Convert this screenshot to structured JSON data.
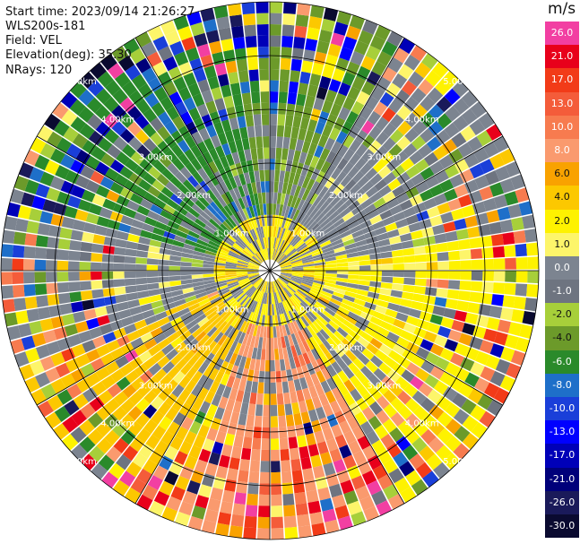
{
  "header": {
    "start_time": "Start time: 2023/09/14 21:26:27",
    "instrument": "WLS200s-181",
    "field": "Field: VEL",
    "elevation": "Elevation(deg): 35.30",
    "nrays": "NRays: 120"
  },
  "colorbar": {
    "unit": "m/s",
    "levels": [
      {
        "label": "26.0",
        "color": "#f23fa2"
      },
      {
        "label": "21.0",
        "color": "#e8001b"
      },
      {
        "label": "17.0",
        "color": "#f23b18"
      },
      {
        "label": "13.0",
        "color": "#f45c3a"
      },
      {
        "label": "10.0",
        "color": "#f77b4f"
      },
      {
        "label": "8.0",
        "color": "#fa9a6e"
      },
      {
        "label": "6.0",
        "color": "#f9a200"
      },
      {
        "label": "4.0",
        "color": "#fcc800"
      },
      {
        "label": "2.0",
        "color": "#fef200"
      },
      {
        "label": "1.0",
        "color": "#fdf56a"
      },
      {
        "label": "0.0",
        "color": "#7c8490"
      },
      {
        "label": "-1.0",
        "color": "#6e7480"
      },
      {
        "label": "-2.0",
        "color": "#a7cf3a"
      },
      {
        "label": "-4.0",
        "color": "#6c9a2a"
      },
      {
        "label": "-6.0",
        "color": "#2a8a2a"
      },
      {
        "label": "-8.0",
        "color": "#1e6fc9"
      },
      {
        "label": "-10.0",
        "color": "#1a3fd9"
      },
      {
        "label": "-13.0",
        "color": "#0000ff"
      },
      {
        "label": "-17.0",
        "color": "#0000b8"
      },
      {
        "label": "-21.0",
        "color": "#00007a"
      },
      {
        "label": "-26.0",
        "color": "#1a1a5a"
      },
      {
        "label": "-30.0",
        "color": "#0a0a30"
      }
    ]
  },
  "chart_data": {
    "type": "heatmap",
    "projection": "polar PPI",
    "field": "VEL",
    "nrays": 120,
    "range_rings_km": [
      1,
      2,
      3,
      4,
      5
    ],
    "ring_labels": [
      "1.00km",
      "2.00km",
      "3.00km",
      "4.00km",
      "5.00km"
    ],
    "spoke_angles_deg": [
      0,
      30,
      60,
      90,
      120,
      150,
      180,
      210,
      240,
      270,
      300,
      330
    ],
    "sectors": [
      {
        "az_from": 285,
        "az_to": 350,
        "dominant": "-6.0"
      },
      {
        "az_from": 350,
        "az_to": 30,
        "dominant": "-4.0"
      },
      {
        "az_from": 30,
        "az_to": 80,
        "dominant": "0.0"
      },
      {
        "az_from": 80,
        "az_to": 150,
        "dominant": "2.0"
      },
      {
        "az_from": 150,
        "az_to": 200,
        "dominant": "8.0"
      },
      {
        "az_from": 200,
        "az_to": 250,
        "dominant": "4.0"
      },
      {
        "az_from": 250,
        "az_to": 285,
        "dominant": "0.0"
      }
    ],
    "grid": true
  }
}
